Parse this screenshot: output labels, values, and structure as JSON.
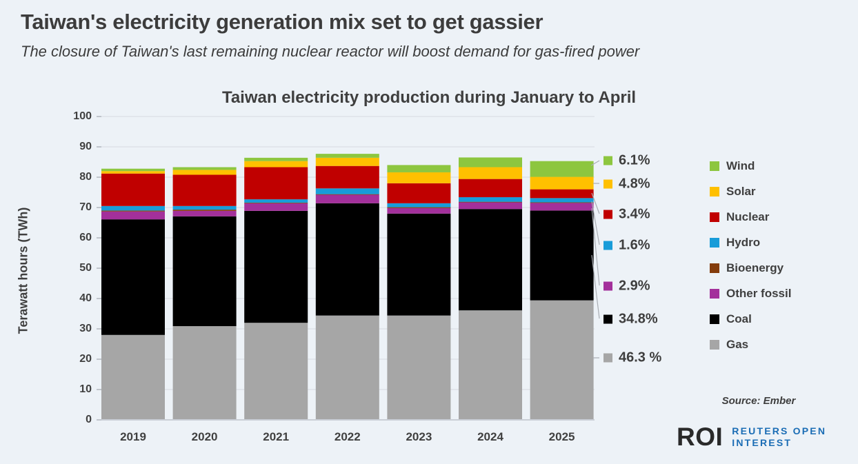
{
  "page": {
    "title": "Taiwan's electricity generation mix set to get gassier",
    "subtitle": "The closure of Taiwan's last remaining nuclear reactor will boost demand for gas-fired power",
    "source": "Source: Ember",
    "logo": {
      "roi": "ROI",
      "line1": "REUTERS OPEN",
      "line2": "INTEREST"
    }
  },
  "colors": {
    "background": "#edf2f7",
    "gridline": "#dbe0e6",
    "baseline": "#c9ced6",
    "tick": "#b0b6bd",
    "connector": "#a9adb3",
    "text_dark": "#3c3c3c",
    "logo_blue": "#1b6db5",
    "wind": "#8dc63f",
    "solar": "#ffc000",
    "nuclear": "#c00000",
    "hydro": "#189cd9",
    "bioenergy": "#843c0c",
    "other_fossil": "#a3309b",
    "coal": "#000000",
    "gas": "#a6a6a6"
  },
  "chart_data": {
    "type": "bar",
    "stacked": true,
    "title": "Taiwan electricity production during January to April",
    "ylabel": "Terawatt hours (TWh)",
    "ylim": [
      0,
      100
    ],
    "yticks": [
      0,
      10,
      20,
      30,
      40,
      50,
      60,
      70,
      80,
      90,
      100
    ],
    "grid": true,
    "unit": "TWh",
    "categories": [
      "2019",
      "2020",
      "2021",
      "2022",
      "2023",
      "2024",
      "2025"
    ],
    "series": [
      {
        "name": "Gas",
        "color": "#a6a6a6",
        "values": [
          28.0,
          30.9,
          32.0,
          34.4,
          34.4,
          36.1,
          39.4
        ]
      },
      {
        "name": "Coal",
        "color": "#000000",
        "values": [
          38.1,
          36.2,
          36.9,
          37.0,
          33.6,
          33.4,
          29.6
        ]
      },
      {
        "name": "Other fossil",
        "color": "#a3309b",
        "values": [
          2.6,
          1.8,
          2.5,
          2.8,
          1.8,
          2.2,
          2.5
        ]
      },
      {
        "name": "Bioenergy",
        "color": "#843c0c",
        "values": [
          0.3,
          0.4,
          0.2,
          0.2,
          0.3,
          0.2,
          0.2
        ]
      },
      {
        "name": "Hydro",
        "color": "#189cd9",
        "values": [
          1.5,
          1.2,
          1.1,
          1.9,
          1.3,
          1.5,
          1.4
        ]
      },
      {
        "name": "Nuclear",
        "color": "#c00000",
        "values": [
          10.7,
          10.3,
          10.6,
          7.4,
          6.6,
          6.0,
          2.9
        ]
      },
      {
        "name": "Solar",
        "color": "#ffc000",
        "values": [
          0.8,
          1.6,
          2.0,
          2.7,
          3.6,
          3.9,
          4.1
        ]
      },
      {
        "name": "Wind",
        "color": "#8dc63f",
        "values": [
          0.8,
          0.9,
          1.1,
          1.3,
          2.4,
          3.2,
          5.2
        ]
      }
    ],
    "legend_order": [
      "Wind",
      "Solar",
      "Nuclear",
      "Hydro",
      "Bioenergy",
      "Other fossil",
      "Coal",
      "Gas"
    ],
    "legend_position": "right",
    "callouts": [
      {
        "series": "Wind",
        "label": "6.1%"
      },
      {
        "series": "Solar",
        "label": "4.8%"
      },
      {
        "series": "Nuclear",
        "label": "3.4%"
      },
      {
        "series": "Hydro",
        "label": "1.6%"
      },
      {
        "series": "Other fossil",
        "label": "2.9%"
      },
      {
        "series": "Coal",
        "label": "34.8%"
      },
      {
        "series": "Gas",
        "label": "46.3 %"
      }
    ]
  }
}
